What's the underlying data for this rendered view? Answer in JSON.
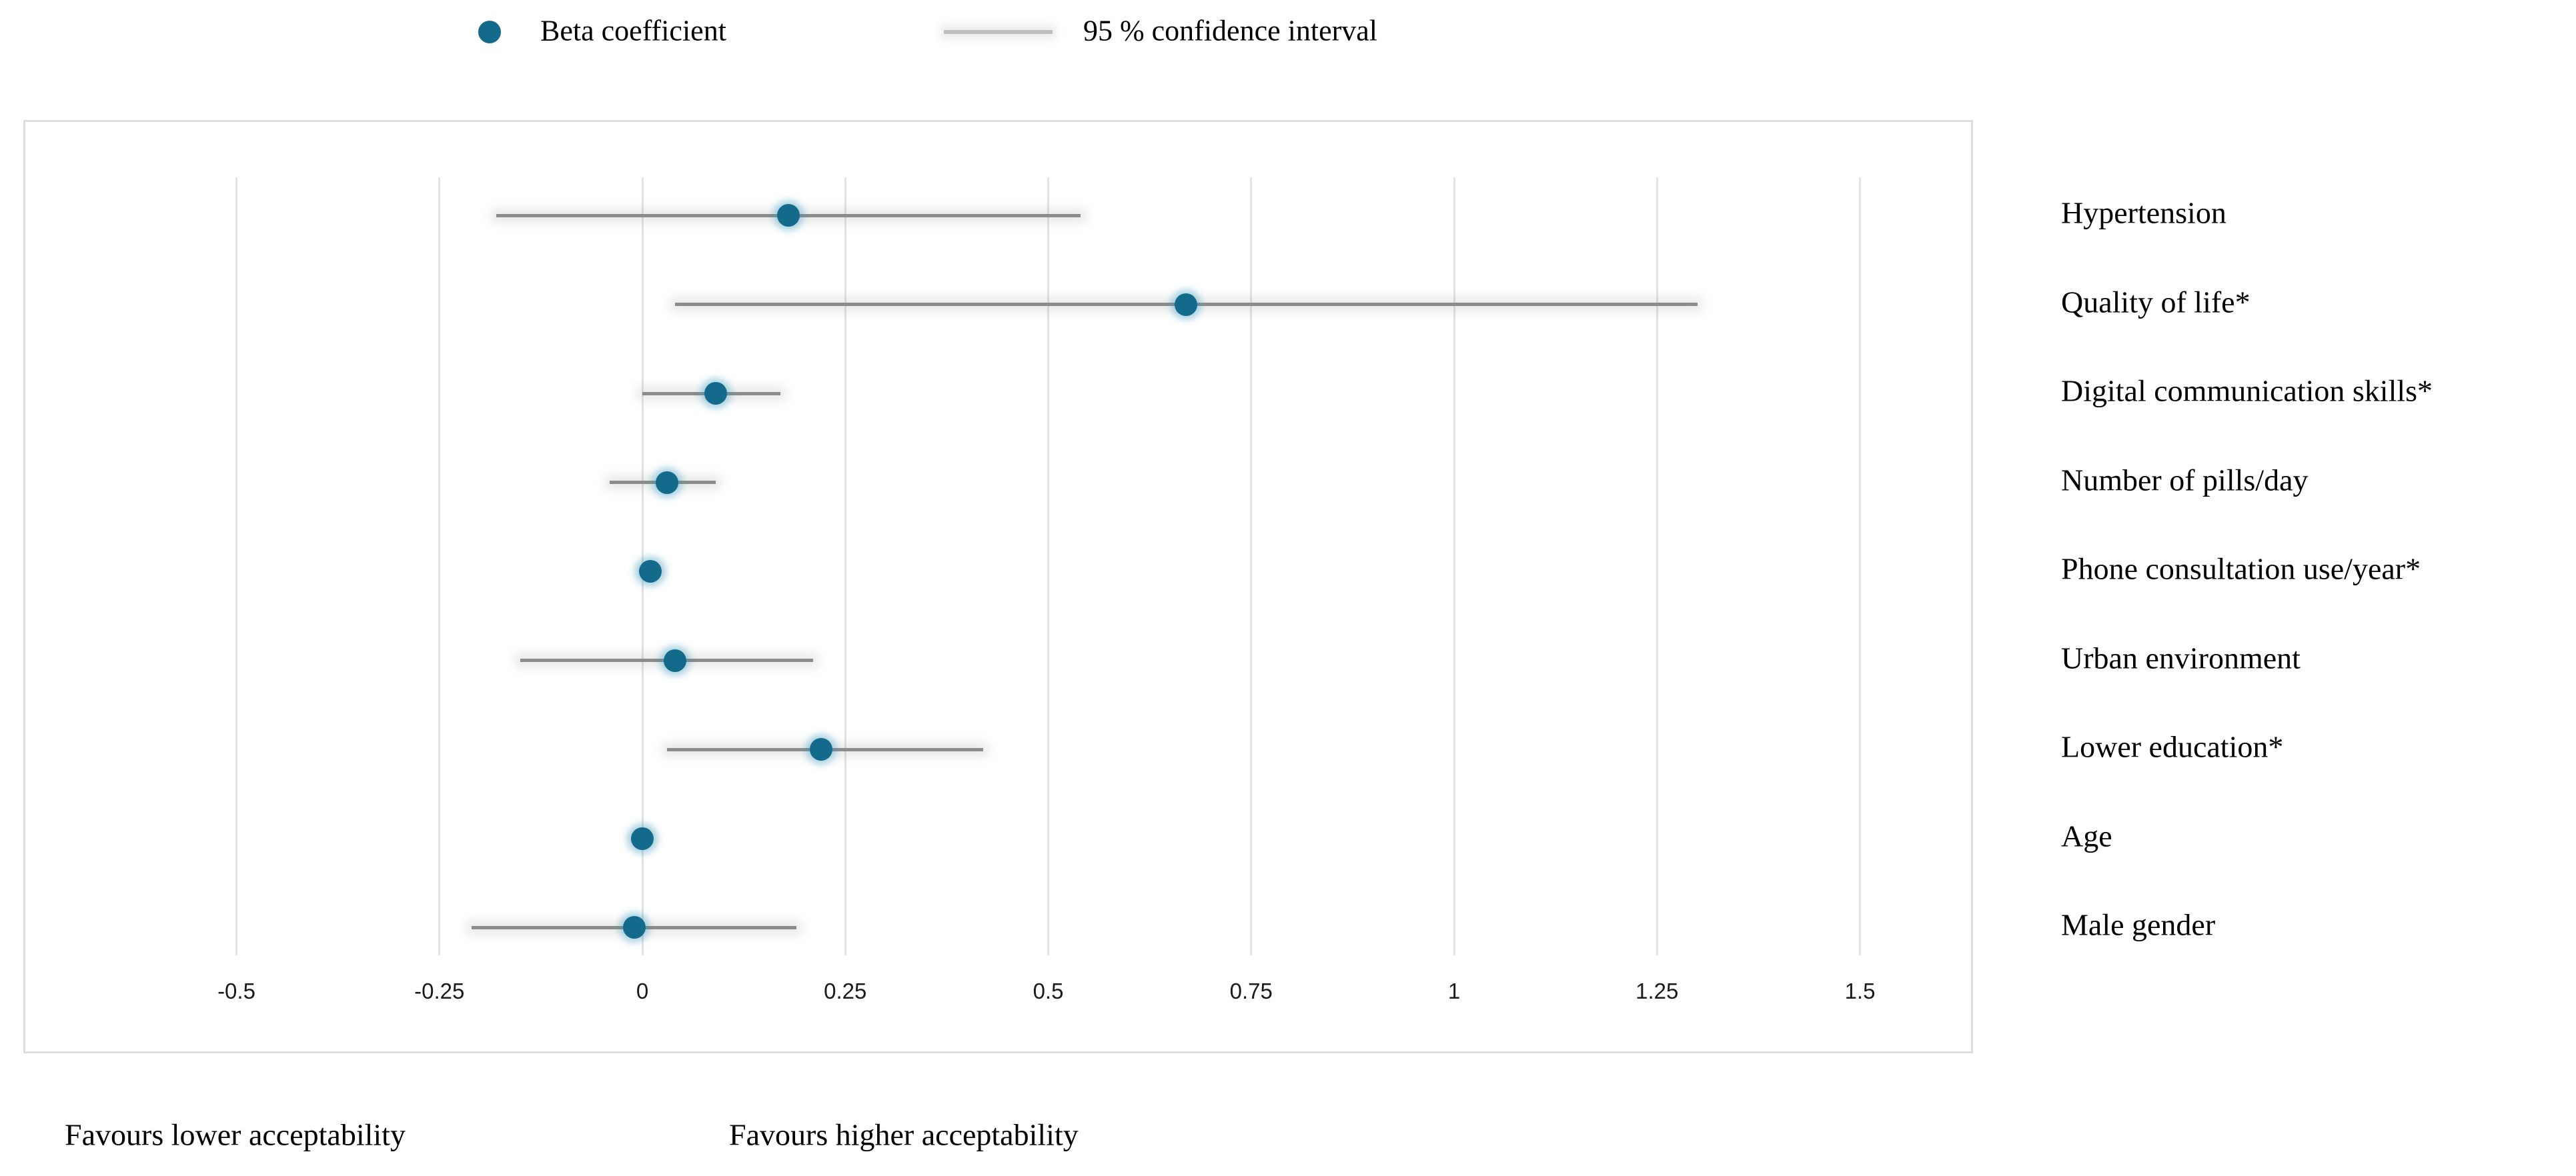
{
  "legend": {
    "items": [
      {
        "marker": "dot",
        "label": "Beta coefficient"
      },
      {
        "marker": "line",
        "label": "95 % confidence interval"
      }
    ]
  },
  "chart_data": {
    "type": "scatter",
    "subtype": "horizontal-forest-plot",
    "title": "",
    "xlabel": "",
    "ylabel": "",
    "grid": "vertical-only",
    "legend_position": "top",
    "axis": {
      "xmin": -0.5,
      "xmax": 1.5,
      "tick_values": [
        -0.5,
        -0.25,
        0,
        0.25,
        0.5,
        0.75,
        1,
        1.25,
        1.5
      ],
      "tick_labels": [
        "-0.5",
        "-0.25",
        "0",
        "0.25",
        "0.5",
        "0.75",
        "1",
        "1.25",
        "1.5"
      ]
    },
    "categories": [
      "Hypertension",
      "Quality of life*",
      "Digital communication skills*",
      "Number of pills/day",
      "Phone consultation use/year*",
      "Urban environment",
      "Lower education*",
      "Age",
      "Male gender"
    ],
    "rows": [
      {
        "label": "Hypertension",
        "beta": 0.18,
        "ci_low": -0.18,
        "ci_high": 0.54
      },
      {
        "label": "Quality of life*",
        "beta": 0.67,
        "ci_low": 0.04,
        "ci_high": 1.3
      },
      {
        "label": "Digital communication skills*",
        "beta": 0.09,
        "ci_low": 0.0,
        "ci_high": 0.17
      },
      {
        "label": "Number of pills/day",
        "beta": 0.03,
        "ci_low": -0.04,
        "ci_high": 0.09
      },
      {
        "label": "Phone consultation use/year*",
        "beta": 0.01,
        "ci_low": 0.0,
        "ci_high": 0.02
      },
      {
        "label": "Urban environment",
        "beta": 0.04,
        "ci_low": -0.15,
        "ci_high": 0.21
      },
      {
        "label": "Lower education*",
        "beta": 0.22,
        "ci_low": 0.03,
        "ci_high": 0.42
      },
      {
        "label": "Age",
        "beta": 0.0,
        "ci_low": -0.01,
        "ci_high": 0.01
      },
      {
        "label": "Male gender",
        "beta": -0.01,
        "ci_low": -0.21,
        "ci_high": 0.19
      }
    ]
  },
  "annotations": {
    "left_caption": "Favours lower acceptability",
    "right_caption": "Favours higher acceptability"
  },
  "colors": {
    "beta_dot": "#136a8a",
    "ci_line": "#8c8c8c",
    "legend_line": "#bfbfbf",
    "gridline": "#e3e3e3",
    "plot_border": "#dedede",
    "text": "#000000"
  }
}
